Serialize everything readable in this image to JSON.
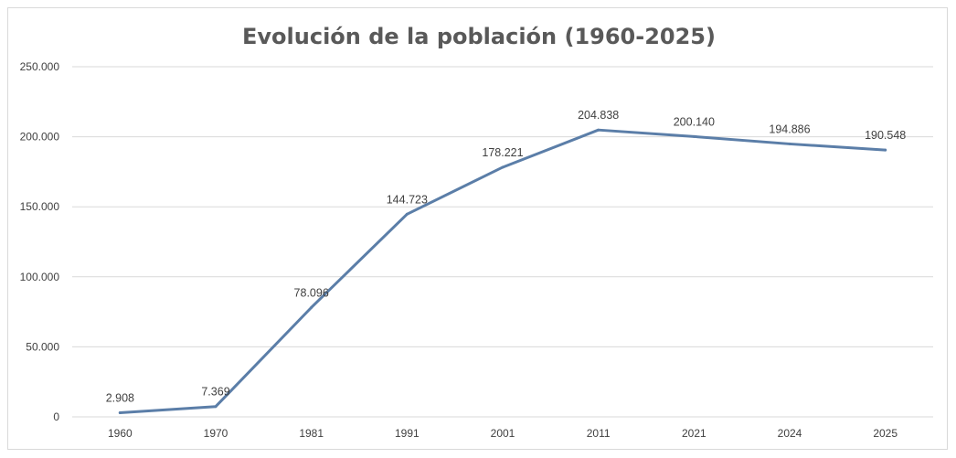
{
  "chart_data": {
    "type": "line",
    "title": "Evolución de la población (1960-2025)",
    "xlabel": "",
    "ylabel": "",
    "categories": [
      "1960",
      "1970",
      "1981",
      "1991",
      "2001",
      "2011",
      "2021",
      "2024",
      "2025"
    ],
    "series": [
      {
        "values": [
          2908,
          7369,
          78096,
          144723,
          178221,
          204838,
          200140,
          194886,
          190548
        ],
        "data_labels": [
          "2.908",
          "7.369",
          "78.096",
          "144.723",
          "178.221",
          "204.838",
          "200.140",
          "194.886",
          "190.548"
        ],
        "color": "#5b7ea8"
      }
    ],
    "ylim": [
      0,
      250000
    ],
    "y_ticks": [
      0,
      50000,
      100000,
      150000,
      200000,
      250000
    ],
    "y_tick_labels": [
      "0",
      "50.000",
      "100.000",
      "150.000",
      "200.000",
      "250.000"
    ],
    "grid": "horizontal",
    "legend": "none"
  },
  "colors": {
    "series": "#5b7ea8",
    "grid": "#d9d9d9",
    "title": "#595959",
    "text": "#404040"
  }
}
